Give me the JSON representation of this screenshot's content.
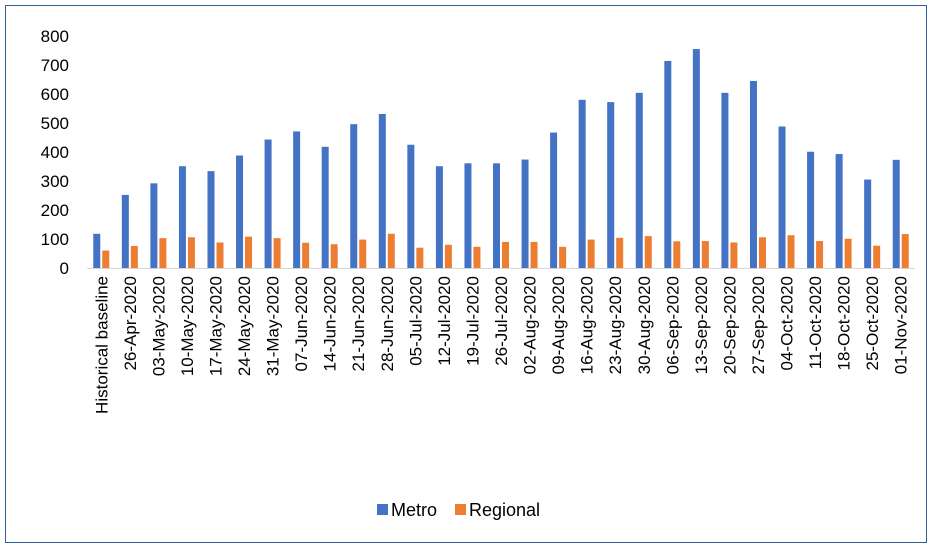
{
  "chart_data": {
    "type": "bar",
    "title": "",
    "xlabel": "",
    "ylabel": "",
    "ylim": [
      0,
      800
    ],
    "yticks": [
      0,
      100,
      200,
      300,
      400,
      500,
      600,
      700,
      800
    ],
    "grid": false,
    "legend_position": "bottom",
    "categories": [
      "Historical baseline",
      "26-Apr-2020",
      "03-May-2020",
      "10-May-2020",
      "17-May-2020",
      "24-May-2020",
      "31-May-2020",
      "07-Jun-2020",
      "14-Jun-2020",
      "21-Jun-2020",
      "28-Jun-2020",
      "05-Jul-2020",
      "12-Jul-2020",
      "19-Jul-2020",
      "26-Jul-2020",
      "02-Aug-2020",
      "09-Aug-2020",
      "16-Aug-2020",
      "23-Aug-2020",
      "30-Aug-2020",
      "06-Sep-2020",
      "13-Sep-2020",
      "20-Sep-2020",
      "27-Sep-2020",
      "04-Oct-2020",
      "11-Oct-2020",
      "18-Oct-2020",
      "25-Oct-2020",
      "01-Nov-2020"
    ],
    "series": [
      {
        "name": "Metro",
        "color": "#4472c4",
        "values": [
          118,
          252,
          292,
          351,
          334,
          388,
          443,
          471,
          418,
          496,
          531,
          425,
          351,
          361,
          361,
          374,
          467,
          580,
          572,
          604,
          714,
          755,
          604,
          645,
          488,
          401,
          393,
          305,
          373
        ]
      },
      {
        "name": "Regional",
        "color": "#ed7d31",
        "values": [
          60,
          76,
          103,
          106,
          88,
          108,
          103,
          87,
          82,
          98,
          118,
          70,
          80,
          73,
          90,
          90,
          73,
          98,
          104,
          110,
          92,
          93,
          88,
          106,
          113,
          93,
          101,
          77,
          117
        ]
      }
    ]
  }
}
